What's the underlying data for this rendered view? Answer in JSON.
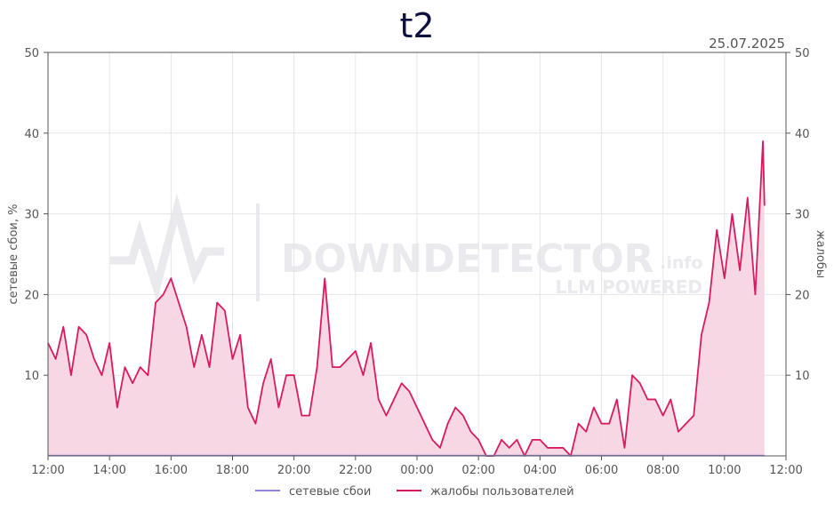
{
  "chart_data": {
    "type": "area",
    "title": "t2",
    "date": "25.07.2025",
    "ylabel_left": "сетевые сбои, %",
    "ylabel_right": "жалобы",
    "ylim": [
      0,
      50
    ],
    "y_ticks": [
      "10",
      "20",
      "30",
      "40",
      "50"
    ],
    "y_tick_values": [
      10,
      20,
      30,
      40,
      50
    ],
    "xlim_hours": [
      0,
      24
    ],
    "x_ticks": [
      "12:00",
      "14:00",
      "16:00",
      "18:00",
      "20:00",
      "22:00",
      "00:00",
      "02:00",
      "04:00",
      "06:00",
      "08:00",
      "10:00",
      "12:00"
    ],
    "grid": true,
    "legend_position": "bottom",
    "watermark": {
      "brand": "DOWNDETECTOR",
      "suffix": ".info",
      "tagline": "LLM POWERED"
    },
    "series": [
      {
        "name": "сетевые сбои",
        "color": "#8f84dc",
        "x": [
          0,
          23.3
        ],
        "values": [
          0,
          0
        ]
      },
      {
        "name": "жалобы пользователей",
        "color": "#d81b60",
        "fill": "#f7d3e1",
        "x": [
          0,
          0.25,
          0.5,
          0.75,
          1.0,
          1.25,
          1.5,
          1.75,
          2.0,
          2.25,
          2.5,
          2.75,
          3.0,
          3.25,
          3.5,
          3.75,
          4.0,
          4.25,
          4.5,
          4.75,
          5.0,
          5.25,
          5.5,
          5.75,
          6.0,
          6.25,
          6.5,
          6.75,
          7.0,
          7.25,
          7.5,
          7.75,
          8.0,
          8.25,
          8.5,
          8.75,
          9.0,
          9.25,
          9.5,
          9.75,
          10.0,
          10.25,
          10.5,
          10.75,
          11.0,
          11.25,
          11.5,
          11.75,
          12.0,
          12.25,
          12.5,
          12.75,
          13.0,
          13.25,
          13.5,
          13.75,
          14.0,
          14.25,
          14.5,
          14.75,
          15.0,
          15.25,
          15.5,
          15.75,
          16.0,
          16.25,
          16.5,
          16.75,
          17.0,
          17.25,
          17.5,
          17.75,
          18.0,
          18.25,
          18.5,
          18.75,
          19.0,
          19.25,
          19.5,
          19.75,
          20.0,
          20.25,
          20.5,
          20.75,
          21.0,
          21.25,
          21.5,
          21.75,
          22.0,
          22.25,
          22.5,
          22.75,
          23.0,
          23.25,
          23.3
        ],
        "values": [
          14,
          12,
          16,
          10,
          16,
          15,
          12,
          10,
          14,
          6,
          11,
          9,
          11,
          10,
          19,
          20,
          22,
          19,
          16,
          11,
          15,
          11,
          19,
          18,
          12,
          15,
          6,
          4,
          9,
          12,
          6,
          10,
          10,
          5,
          5,
          11,
          22,
          11,
          11,
          12,
          13,
          10,
          14,
          7,
          5,
          7,
          9,
          8,
          6,
          4,
          2,
          1,
          4,
          6,
          5,
          3,
          2,
          0,
          0,
          2,
          1,
          2,
          0,
          2,
          2,
          1,
          1,
          1,
          0,
          4,
          3,
          6,
          4,
          4,
          7,
          1,
          10,
          9,
          7,
          7,
          5,
          7,
          3,
          4,
          5,
          15,
          19,
          28,
          22,
          30,
          23,
          32,
          20,
          39,
          31
        ]
      }
    ]
  }
}
